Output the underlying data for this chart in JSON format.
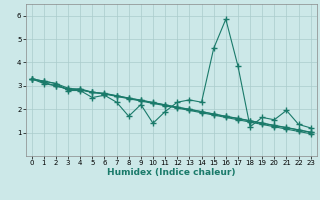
{
  "title": "",
  "xlabel": "Humidex (Indice chaleur)",
  "x": [
    0,
    1,
    2,
    3,
    4,
    5,
    6,
    7,
    8,
    9,
    10,
    11,
    12,
    13,
    14,
    15,
    16,
    17,
    18,
    19,
    20,
    21,
    22,
    23
  ],
  "series": [
    [
      3.3,
      3.2,
      3.1,
      2.8,
      2.8,
      2.5,
      2.6,
      2.3,
      1.7,
      2.2,
      1.4,
      1.9,
      2.3,
      2.4,
      2.3,
      4.6,
      5.85,
      3.85,
      1.25,
      1.65,
      1.55,
      1.95,
      1.35,
      1.2
    ],
    [
      3.3,
      3.1,
      3.0,
      2.85,
      2.85,
      2.72,
      2.65,
      2.55,
      2.45,
      2.35,
      2.25,
      2.15,
      2.05,
      1.95,
      1.85,
      1.75,
      1.65,
      1.55,
      1.45,
      1.35,
      1.25,
      1.15,
      1.05,
      0.95
    ],
    [
      3.3,
      3.15,
      3.0,
      2.87,
      2.87,
      2.73,
      2.67,
      2.57,
      2.47,
      2.38,
      2.28,
      2.18,
      2.08,
      1.99,
      1.89,
      1.79,
      1.69,
      1.6,
      1.5,
      1.4,
      1.3,
      1.21,
      1.11,
      1.01
    ],
    [
      3.3,
      3.2,
      3.1,
      2.9,
      2.82,
      2.72,
      2.68,
      2.58,
      2.48,
      2.39,
      2.29,
      2.19,
      2.09,
      2.0,
      1.9,
      1.8,
      1.7,
      1.61,
      1.51,
      1.41,
      1.31,
      1.22,
      1.12,
      1.02
    ]
  ],
  "line_color": "#1a7a6a",
  "marker": "+",
  "marker_size": 4,
  "marker_lw": 1.0,
  "line_width": 0.8,
  "xlim": [
    -0.5,
    23.5
  ],
  "ylim": [
    0,
    6.5
  ],
  "yticks": [
    1,
    2,
    3,
    4,
    5,
    6
  ],
  "xticks": [
    0,
    1,
    2,
    3,
    4,
    5,
    6,
    7,
    8,
    9,
    10,
    11,
    12,
    13,
    14,
    15,
    16,
    17,
    18,
    19,
    20,
    21,
    22,
    23
  ],
  "tick_fontsize": 5.0,
  "xlabel_fontsize": 6.5,
  "bg_color": "#cce8e8",
  "grid_color": "#aacccc",
  "fig_bg": "#cce8e8"
}
